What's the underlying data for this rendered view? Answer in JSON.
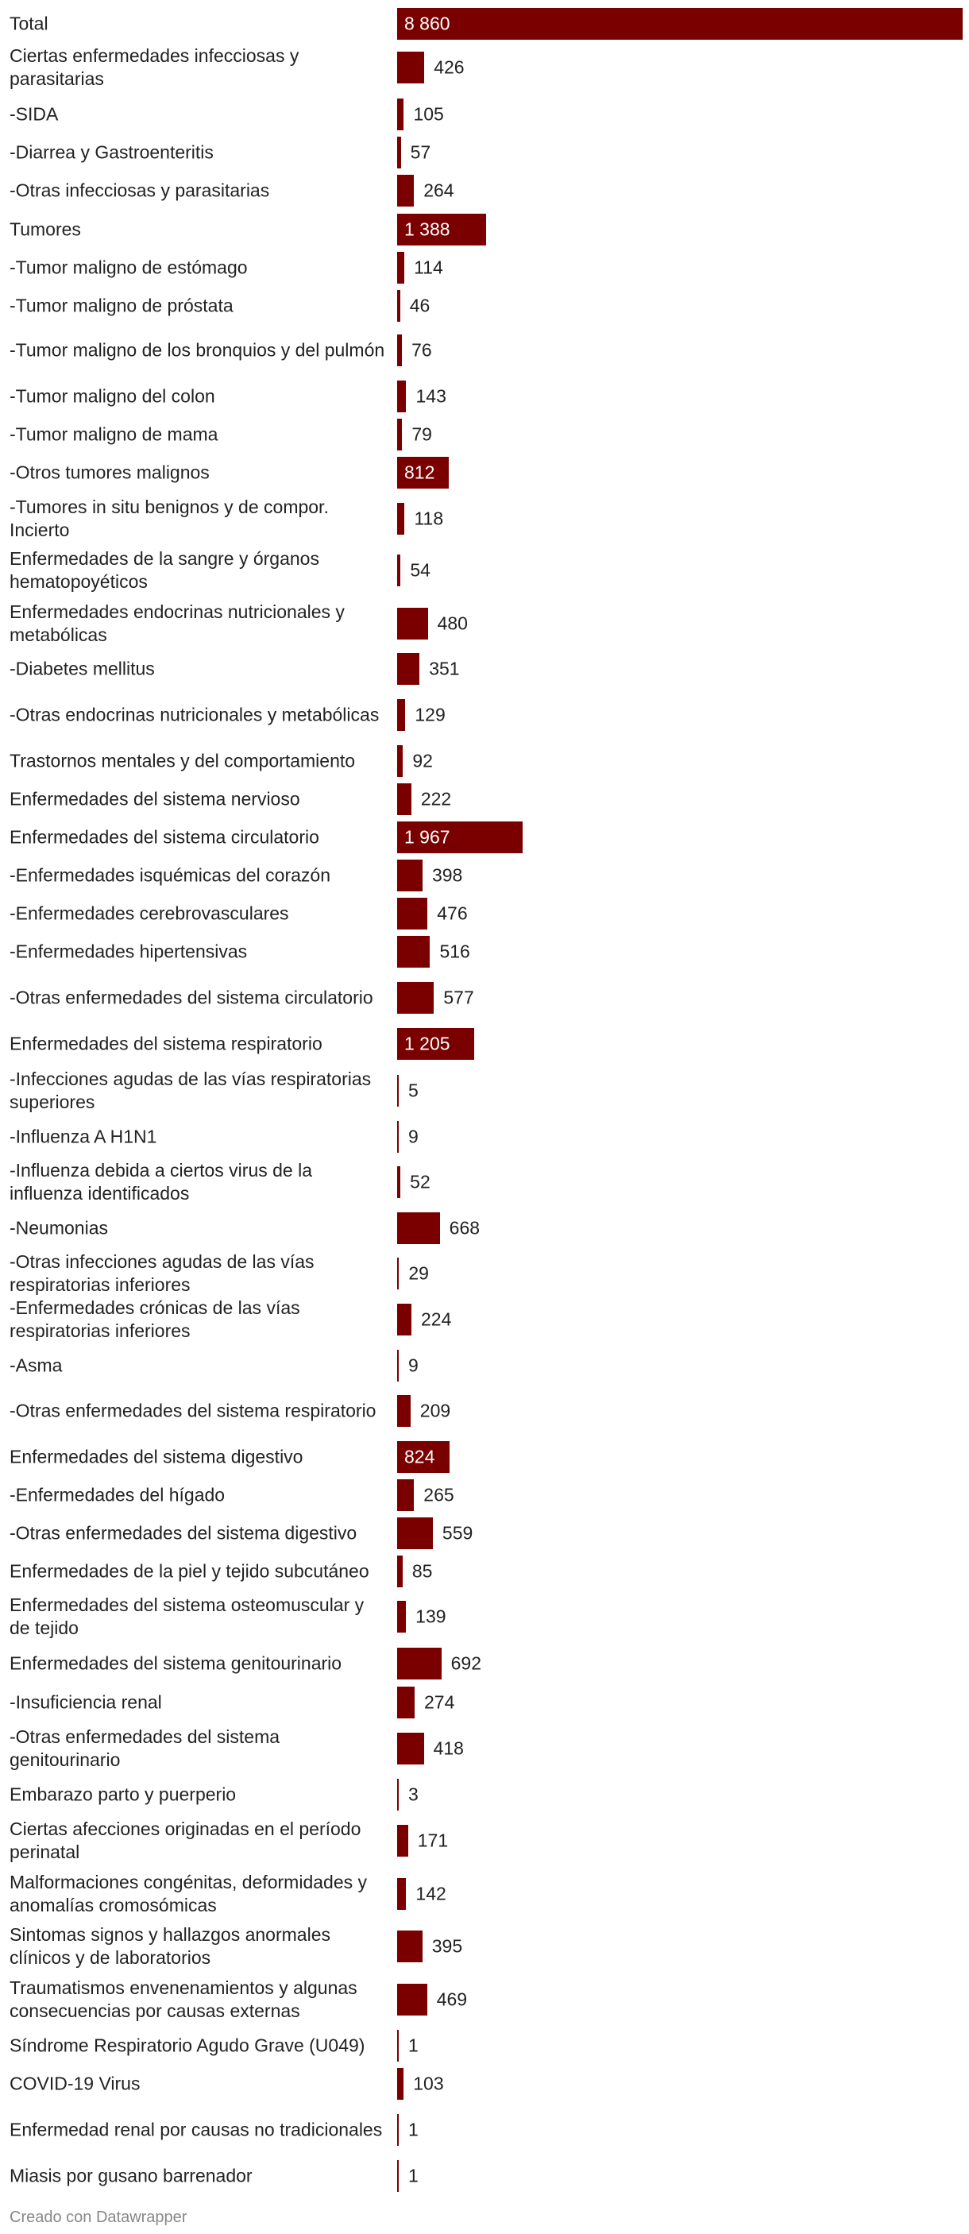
{
  "chart_data": {
    "type": "bar",
    "orientation": "horizontal",
    "bar_color": "#7a0000",
    "categories": [
      "Total",
      "Ciertas enfermedades infecciosas y parasitarias",
      "-SIDA",
      "-Diarrea y Gastroenteritis",
      "-Otras infecciosas y parasitarias",
      "Tumores",
      "-Tumor maligno de estómago",
      "-Tumor maligno de próstata",
      "-Tumor maligno de los bronquios y del pulmón",
      "-Tumor maligno del colon",
      "-Tumor maligno de mama",
      "-Otros tumores malignos",
      "-Tumores in situ benignos y de compor. Incierto",
      "Enfermedades de la sangre y órganos hematopoyéticos",
      "Enfermedades endocrinas nutricionales y metabólicas",
      "-Diabetes mellitus",
      "-Otras endocrinas nutricionales y metabólicas",
      "Trastornos mentales y del comportamiento",
      "Enfermedades del sistema nervioso",
      "Enfermedades del sistema circulatorio",
      "-Enfermedades isquémicas del corazón",
      "-Enfermedades cerebrovasculares",
      "-Enfermedades hipertensivas",
      "-Otras enfermedades del sistema circulatorio",
      "Enfermedades del sistema respiratorio",
      "-Infecciones agudas de las vías respiratorias superiores",
      "-Influenza A H1N1",
      "-Influenza debida a ciertos virus de la influenza identificados",
      "-Neumonias",
      "-Otras infecciones agudas de las vías respiratorias inferiores",
      "-Enfermedades crónicas de las vías respiratorias inferiores",
      "-Asma",
      "-Otras enfermedades del sistema respiratorio",
      "Enfermedades del sistema digestivo",
      "-Enfermedades del hígado",
      "-Otras enfermedades del sistema digestivo",
      "Enfermedades de la piel y tejido subcutáneo",
      "Enfermedades del sistema osteomuscular y de tejido",
      "Enfermedades del sistema genitourinario",
      "-Insuficiencia renal",
      "-Otras enfermedades del sistema genitourinario",
      "Embarazo parto y puerperio",
      "Ciertas afecciones originadas en el período perinatal",
      "Malformaciones congénitas, deformidades y anomalías cromosómicas",
      "Sintomas signos y hallazgos anormales clínicos y de laboratorios",
      "Traumatismos envenenamientos y algunas consecuencias por causas externas",
      "Síndrome Respiratorio Agudo Grave (U049)",
      "COVID-19 Virus",
      "Enfermedad renal por causas no tradicionales",
      "Miasis por gusano barrenador"
    ],
    "values": [
      8860,
      426,
      105,
      57,
      264,
      1388,
      114,
      46,
      76,
      143,
      79,
      812,
      118,
      54,
      480,
      351,
      129,
      92,
      222,
      1967,
      398,
      476,
      516,
      577,
      1205,
      5,
      9,
      52,
      668,
      29,
      224,
      9,
      209,
      824,
      265,
      559,
      85,
      139,
      692,
      274,
      418,
      3,
      171,
      142,
      395,
      469,
      1,
      103,
      1,
      1
    ],
    "value_labels": [
      "8 860",
      "426",
      "105",
      "57",
      "264",
      "1 388",
      "114",
      "46",
      "76",
      "143",
      "79",
      "812",
      "118",
      "54",
      "480",
      "351",
      "129",
      "92",
      "222",
      "1 967",
      "398",
      "476",
      "516",
      "577",
      "1 205",
      "5",
      "9",
      "52",
      "668",
      "29",
      "224",
      "9",
      "209",
      "824",
      "265",
      "559",
      "85",
      "139",
      "692",
      "274",
      "418",
      "3",
      "171",
      "142",
      "395",
      "469",
      "1",
      "103",
      "1",
      "1"
    ],
    "xlim": [
      0,
      8860
    ]
  },
  "footer": {
    "credit": "Creado con Datawrapper"
  }
}
